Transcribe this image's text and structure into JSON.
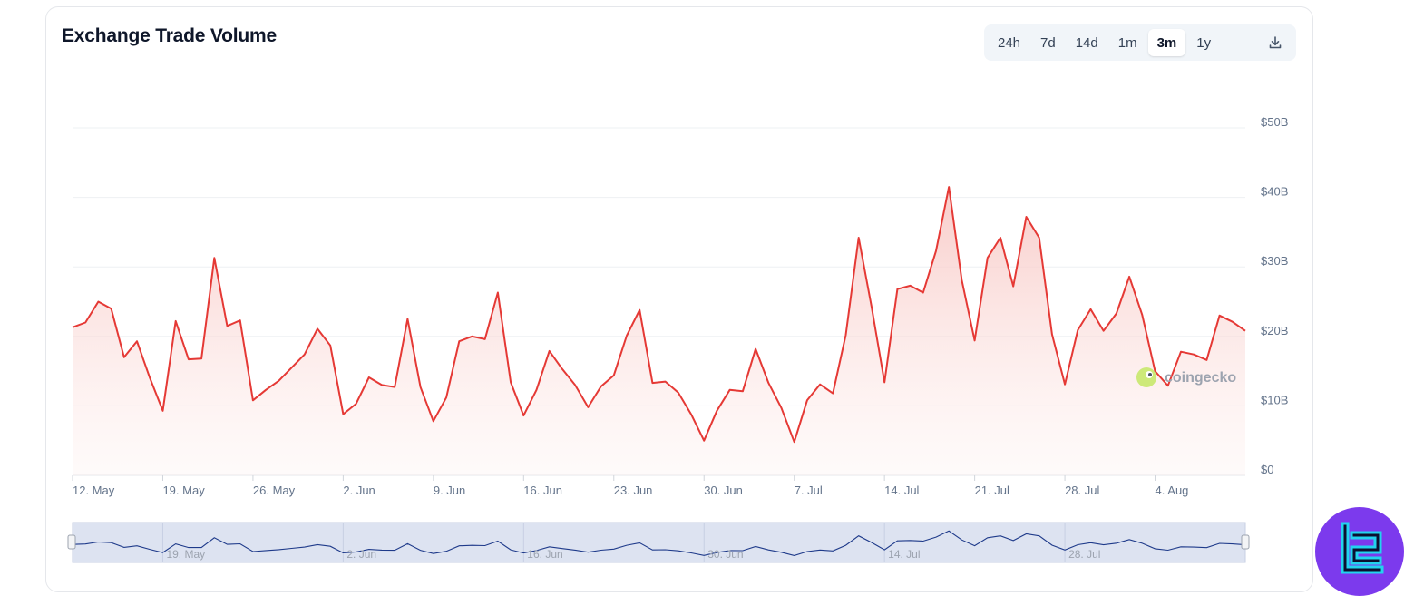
{
  "header": {
    "title": "Exchange Trade Volume"
  },
  "range_selector": {
    "options": [
      "24h",
      "7d",
      "14d",
      "1m",
      "3m",
      "1y"
    ],
    "selected": "3m",
    "download_icon": "download-icon"
  },
  "watermark": {
    "text": "coingecko"
  },
  "colors": {
    "line": "#e53935",
    "fill_top": "#f8c9c6",
    "navigator_line": "#1e3a8a",
    "navigator_bg": "#dde3f1",
    "brand": "#7c3aed"
  },
  "chart_data": {
    "type": "area",
    "ylabel": "",
    "ylim": [
      0,
      50
    ],
    "yticks": [
      0,
      10,
      20,
      30,
      40,
      50
    ],
    "ytick_labels": [
      "$0",
      "$10B",
      "$20B",
      "$30B",
      "$40B",
      "$50B"
    ],
    "grid": true,
    "x_start": "2024-05-12",
    "xticks": [
      {
        "date": "2024-05-12",
        "label": "12. May"
      },
      {
        "date": "2024-05-19",
        "label": "19. May"
      },
      {
        "date": "2024-05-26",
        "label": "26. May"
      },
      {
        "date": "2024-06-02",
        "label": "2. Jun"
      },
      {
        "date": "2024-06-09",
        "label": "9. Jun"
      },
      {
        "date": "2024-06-16",
        "label": "16. Jun"
      },
      {
        "date": "2024-06-23",
        "label": "23. Jun"
      },
      {
        "date": "2024-06-30",
        "label": "30. Jun"
      },
      {
        "date": "2024-07-07",
        "label": "7. Jul"
      },
      {
        "date": "2024-07-14",
        "label": "14. Jul"
      },
      {
        "date": "2024-07-21",
        "label": "21. Jul"
      },
      {
        "date": "2024-07-28",
        "label": "28. Jul"
      },
      {
        "date": "2024-08-04",
        "label": "4. Aug"
      }
    ],
    "navigator_ticks": [
      "19. May",
      "2. Jun",
      "16. Jun",
      "30. Jun",
      "14. Jul",
      "28. Jul"
    ],
    "values": [
      21.3,
      22.0,
      25.0,
      24.0,
      17.0,
      19.3,
      14.0,
      9.3,
      22.2,
      16.7,
      16.8,
      31.3,
      21.5,
      22.3,
      10.8,
      12.3,
      13.6,
      15.5,
      17.4,
      21.1,
      18.7,
      8.8,
      10.3,
      14.1,
      13.0,
      12.7,
      22.5,
      12.7,
      7.8,
      11.2,
      19.3,
      20.0,
      19.6,
      26.3,
      13.4,
      8.6,
      12.3,
      17.9,
      15.3,
      13.0,
      9.8,
      12.8,
      14.4,
      20.1,
      23.8,
      13.3,
      13.5,
      11.9,
      8.8,
      5.0,
      9.3,
      12.3,
      12.1,
      18.2,
      13.3,
      9.7,
      4.8,
      10.8,
      13.1,
      11.8,
      20.2,
      34.2,
      24.3,
      13.4,
      26.8,
      27.3,
      26.3,
      32.3,
      41.5,
      28.1,
      19.4,
      31.3,
      34.2,
      27.2,
      37.2,
      34.2,
      20.3,
      13.1,
      20.9,
      23.9,
      20.8,
      23.3,
      28.6,
      23.1,
      15.0,
      12.9,
      17.8,
      17.4,
      16.6,
      23.0,
      22.1,
      20.8
    ]
  }
}
